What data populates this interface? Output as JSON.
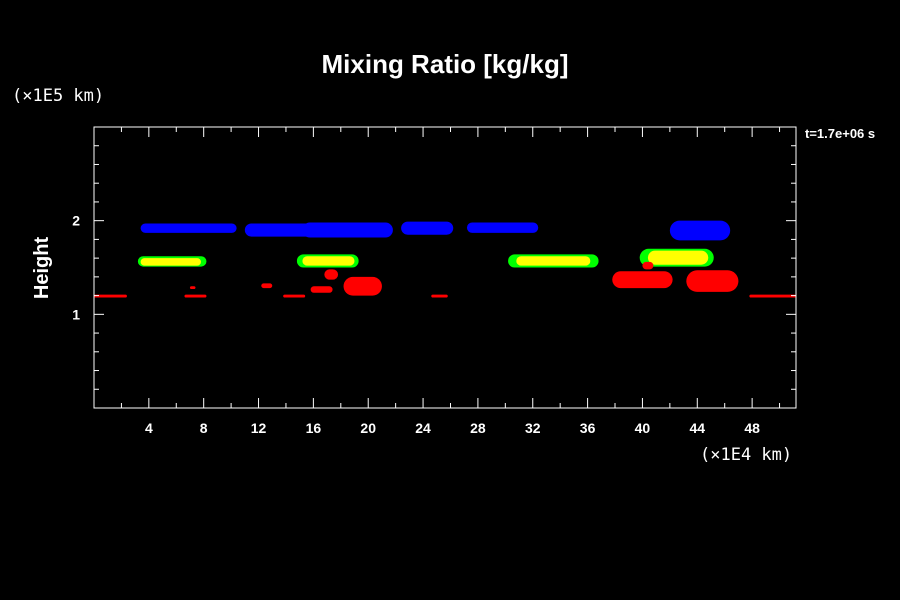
{
  "chart_data": {
    "type": "heatmap",
    "title": "Mixing Ratio [kg/kg]",
    "ylabel": "Height",
    "x_unit": "(×1E4 km)",
    "y_unit": "(×1E5 km)",
    "time_label": "t=1.7e+06 s",
    "xlim": [
      0,
      51.2
    ],
    "ylim": [
      0,
      3.0
    ],
    "x_ticks": [
      "4",
      "8",
      "12",
      "16",
      "20",
      "24",
      "28",
      "32",
      "36",
      "40",
      "44",
      "48"
    ],
    "y_ticks": [
      "1",
      "2"
    ],
    "colors": {
      "background": "#000000",
      "axes": "#ffffff",
      "blue": "#0000ff",
      "green": "#00ff00",
      "yellow": "#ffff00",
      "red": "#ff0000"
    },
    "regions": [
      {
        "color": "blue",
        "x": [
          3.4,
          10.4
        ],
        "y": [
          1.87,
          1.97
        ]
      },
      {
        "color": "blue",
        "x": [
          11.0,
          17.2
        ],
        "y": [
          1.83,
          1.97
        ]
      },
      {
        "color": "blue",
        "x": [
          15.2,
          21.8
        ],
        "y": [
          1.82,
          1.98
        ]
      },
      {
        "color": "blue",
        "x": [
          22.4,
          26.2
        ],
        "y": [
          1.85,
          1.99
        ]
      },
      {
        "color": "blue",
        "x": [
          27.2,
          32.4
        ],
        "y": [
          1.87,
          1.98
        ]
      },
      {
        "color": "blue",
        "x": [
          42.0,
          46.4
        ],
        "y": [
          1.79,
          2.0
        ]
      },
      {
        "color": "green",
        "x": [
          3.2,
          8.2
        ],
        "y": [
          1.51,
          1.62
        ]
      },
      {
        "color": "yellow",
        "x": [
          3.4,
          7.8
        ],
        "y": [
          1.52,
          1.6
        ]
      },
      {
        "color": "green",
        "x": [
          14.8,
          19.3
        ],
        "y": [
          1.5,
          1.64
        ]
      },
      {
        "color": "yellow",
        "x": [
          15.2,
          19.0
        ],
        "y": [
          1.52,
          1.62
        ]
      },
      {
        "color": "green",
        "x": [
          30.2,
          36.8
        ],
        "y": [
          1.5,
          1.64
        ]
      },
      {
        "color": "yellow",
        "x": [
          30.8,
          36.2
        ],
        "y": [
          1.52,
          1.62
        ]
      },
      {
        "color": "green",
        "x": [
          39.8,
          45.2
        ],
        "y": [
          1.51,
          1.7
        ]
      },
      {
        "color": "yellow",
        "x": [
          40.4,
          44.8
        ],
        "y": [
          1.53,
          1.68
        ]
      },
      {
        "color": "red",
        "x": [
          0.0,
          2.4
        ],
        "y": [
          1.18,
          1.21
        ]
      },
      {
        "color": "red",
        "x": [
          6.6,
          8.2
        ],
        "y": [
          1.18,
          1.21
        ]
      },
      {
        "color": "red",
        "x": [
          7.0,
          7.4
        ],
        "y": [
          1.27,
          1.3
        ]
      },
      {
        "color": "red",
        "x": [
          12.2,
          13.0
        ],
        "y": [
          1.28,
          1.33
        ]
      },
      {
        "color": "red",
        "x": [
          13.8,
          15.4
        ],
        "y": [
          1.18,
          1.21
        ]
      },
      {
        "color": "red",
        "x": [
          15.8,
          17.4
        ],
        "y": [
          1.23,
          1.3
        ]
      },
      {
        "color": "red",
        "x": [
          16.8,
          17.8
        ],
        "y": [
          1.37,
          1.48
        ]
      },
      {
        "color": "red",
        "x": [
          18.2,
          21.0
        ],
        "y": [
          1.2,
          1.4
        ]
      },
      {
        "color": "red",
        "x": [
          24.6,
          25.8
        ],
        "y": [
          1.18,
          1.21
        ]
      },
      {
        "color": "red",
        "x": [
          37.8,
          42.2
        ],
        "y": [
          1.28,
          1.46
        ]
      },
      {
        "color": "red",
        "x": [
          40.0,
          40.8
        ],
        "y": [
          1.48,
          1.56
        ]
      },
      {
        "color": "red",
        "x": [
          43.2,
          47.0
        ],
        "y": [
          1.24,
          1.47
        ]
      },
      {
        "color": "red",
        "x": [
          47.8,
          51.2
        ],
        "y": [
          1.18,
          1.21
        ]
      }
    ]
  }
}
